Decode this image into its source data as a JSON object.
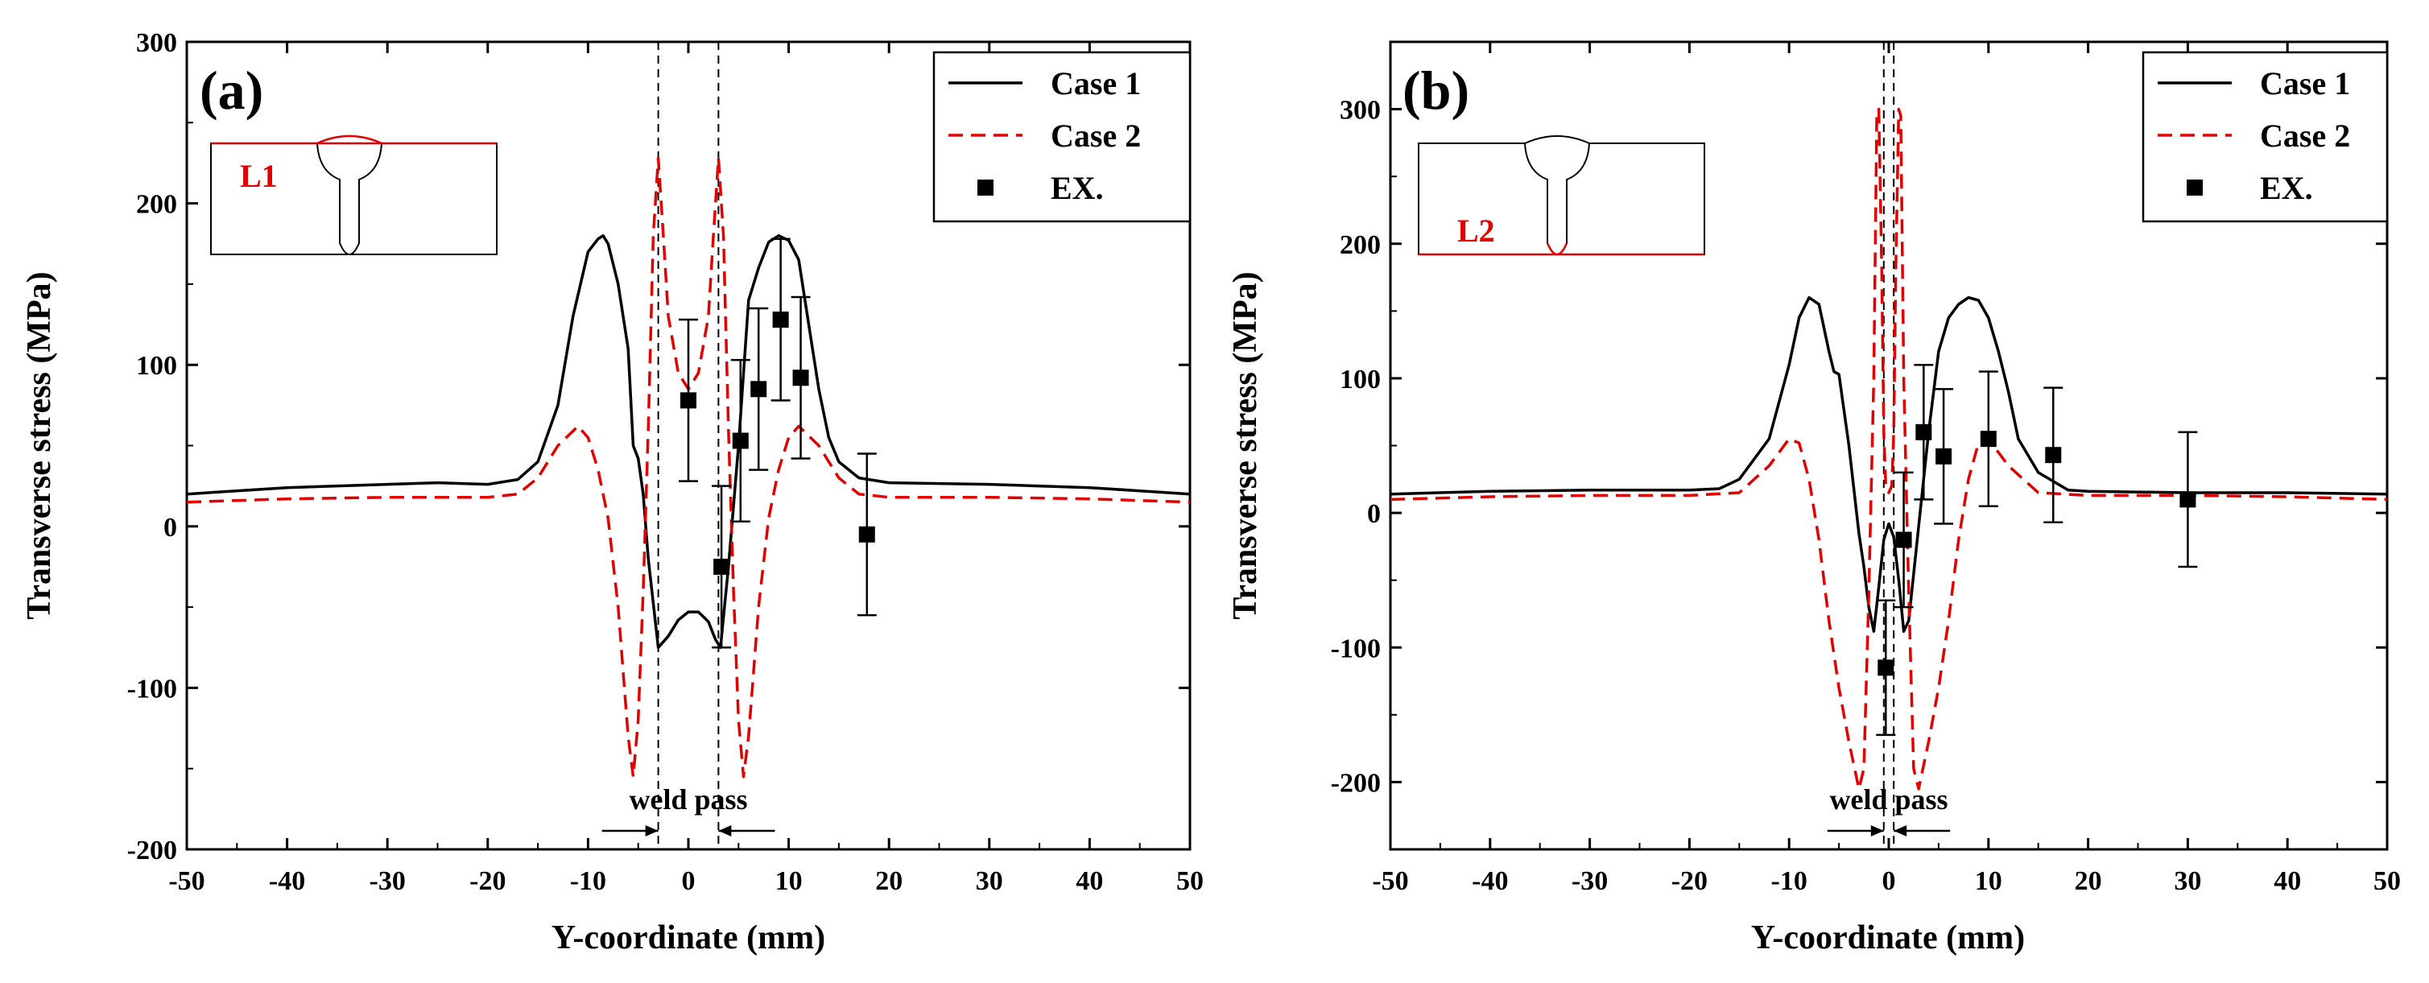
{
  "chart_data": [
    {
      "type": "line",
      "panel_label": "(a)",
      "inset_label": "L1",
      "xlabel": "Y-coordinate (mm)",
      "ylabel": "Transverse stress (MPa)",
      "xlim": [
        -50,
        50
      ],
      "ylim": [
        -200,
        300
      ],
      "xticks": [
        -50,
        -40,
        -30,
        -20,
        -10,
        0,
        10,
        20,
        30,
        40,
        50
      ],
      "yticks": [
        -200,
        -100,
        0,
        100,
        200,
        300
      ],
      "weld_pass_bounds": [
        -3,
        3
      ],
      "annotation": "weld pass",
      "legend": [
        "Case 1",
        "Case 2",
        "EX."
      ],
      "series": [
        {
          "name": "Case 1",
          "style": "solid",
          "color": "#000000",
          "x": [
            -50,
            -40,
            -30,
            -25,
            -20,
            -17,
            -15,
            -13,
            -11.5,
            -10,
            -9,
            -8.5,
            -8,
            -7,
            -6,
            -5.5,
            -5,
            -4.5,
            -4,
            -3,
            -2,
            -1,
            0,
            1,
            2,
            2.7,
            3.2,
            4,
            5,
            6,
            7,
            8,
            9,
            10,
            11,
            12,
            13,
            14,
            15,
            17,
            20,
            30,
            40,
            50
          ],
          "y": [
            20,
            24,
            26,
            27,
            26,
            29,
            40,
            75,
            130,
            170,
            178,
            180,
            175,
            150,
            110,
            50,
            42,
            20,
            -20,
            -75,
            -68,
            -58,
            -53,
            -53,
            -59,
            -70,
            -75,
            -25,
            50,
            140,
            160,
            176,
            180,
            177,
            165,
            125,
            85,
            55,
            40,
            30,
            27,
            26,
            24,
            20
          ]
        },
        {
          "name": "Case 2",
          "style": "dashed",
          "color": "#e00000",
          "x": [
            -50,
            -40,
            -30,
            -20,
            -17,
            -15,
            -13,
            -11,
            -10,
            -9,
            -8,
            -7,
            -6,
            -5.5,
            -5,
            -4.5,
            -4,
            -3.5,
            -3,
            -2.5,
            -2,
            -1,
            0,
            1,
            2,
            2.5,
            3,
            3.5,
            4,
            4.5,
            5,
            5.5,
            6,
            7,
            8,
            9,
            10,
            11,
            13,
            15,
            17,
            20,
            30,
            40,
            50
          ],
          "y": [
            15,
            17,
            18,
            18,
            20,
            30,
            50,
            62,
            55,
            35,
            5,
            -50,
            -130,
            -155,
            -120,
            -40,
            60,
            180,
            228,
            180,
            130,
            95,
            85,
            95,
            130,
            180,
            228,
            180,
            60,
            -40,
            -120,
            -155,
            -130,
            -50,
            5,
            35,
            55,
            62,
            50,
            30,
            20,
            18,
            18,
            17,
            15
          ]
        }
      ],
      "experimental": {
        "name": "EX.",
        "x": [
          0,
          3.3,
          5.2,
          7,
          9.2,
          11.2,
          17.8
        ],
        "y": [
          78,
          -25,
          53,
          85,
          128,
          92,
          -5
        ],
        "err": [
          50,
          50,
          50,
          50,
          50,
          50,
          50
        ]
      }
    },
    {
      "type": "line",
      "panel_label": "(b)",
      "inset_label": "L2",
      "xlabel": "Y-coordinate (mm)",
      "ylabel": "Transverse stress (MPa)",
      "xlim": [
        -50,
        50
      ],
      "ylim": [
        -250,
        350
      ],
      "xticks": [
        -50,
        -40,
        -30,
        -20,
        -10,
        0,
        10,
        20,
        30,
        40,
        50
      ],
      "yticks": [
        -200,
        -100,
        0,
        100,
        200,
        300
      ],
      "weld_pass_bounds": [
        -0.5,
        0.5
      ],
      "annotation": "weld pass",
      "legend": [
        "Case 1",
        "Case 2",
        "EX."
      ],
      "series": [
        {
          "name": "Case 1",
          "style": "solid",
          "color": "#000000",
          "x": [
            -50,
            -40,
            -30,
            -25,
            -20,
            -17,
            -15,
            -12,
            -10,
            -9,
            -8,
            -7,
            -6,
            -5.5,
            -5,
            -4,
            -3,
            -2.5,
            -2,
            -1.5,
            -1,
            -0.5,
            0,
            0.5,
            1,
            1.5,
            2,
            3,
            4,
            5,
            6,
            7,
            8,
            9,
            10,
            11,
            12,
            13,
            15,
            18,
            20,
            30,
            40,
            50
          ],
          "y": [
            14,
            16,
            17,
            17,
            17,
            18,
            25,
            55,
            110,
            145,
            160,
            155,
            120,
            105,
            103,
            50,
            -15,
            -40,
            -70,
            -88,
            -55,
            -20,
            -8,
            -18,
            -50,
            -88,
            -80,
            -10,
            60,
            120,
            145,
            155,
            160,
            158,
            145,
            120,
            90,
            55,
            30,
            17,
            16,
            15,
            15,
            14
          ]
        },
        {
          "name": "Case 2",
          "style": "dashed",
          "color": "#e00000",
          "x": [
            -50,
            -40,
            -30,
            -20,
            -15,
            -12,
            -10,
            -9,
            -8,
            -7,
            -6,
            -5,
            -4,
            -3,
            -2.5,
            -2,
            -1.5,
            -1.2,
            -1,
            -0.7,
            -0.5,
            -0.3,
            0,
            0.3,
            0.5,
            0.7,
            1,
            1.2,
            1.5,
            2,
            2.5,
            3,
            4,
            5,
            6,
            7,
            8,
            9,
            10,
            12,
            15,
            20,
            30,
            40,
            50
          ],
          "y": [
            10,
            12,
            13,
            13,
            15,
            35,
            55,
            52,
            25,
            -20,
            -80,
            -130,
            -170,
            -205,
            -190,
            -60,
            100,
            295,
            300,
            180,
            60,
            20,
            15,
            20,
            60,
            180,
            300,
            295,
            100,
            -60,
            -190,
            -205,
            -170,
            -130,
            -80,
            -20,
            25,
            52,
            55,
            35,
            15,
            13,
            13,
            12,
            10
          ]
        }
      ],
      "experimental": {
        "name": "EX.",
        "x": [
          -0.3,
          1.5,
          3.5,
          5.5,
          10,
          16.5,
          30
        ],
        "y": [
          -115,
          -20,
          60,
          42,
          55,
          43,
          10
        ],
        "err": [
          50,
          50,
          50,
          50,
          50,
          50,
          50
        ]
      }
    }
  ]
}
